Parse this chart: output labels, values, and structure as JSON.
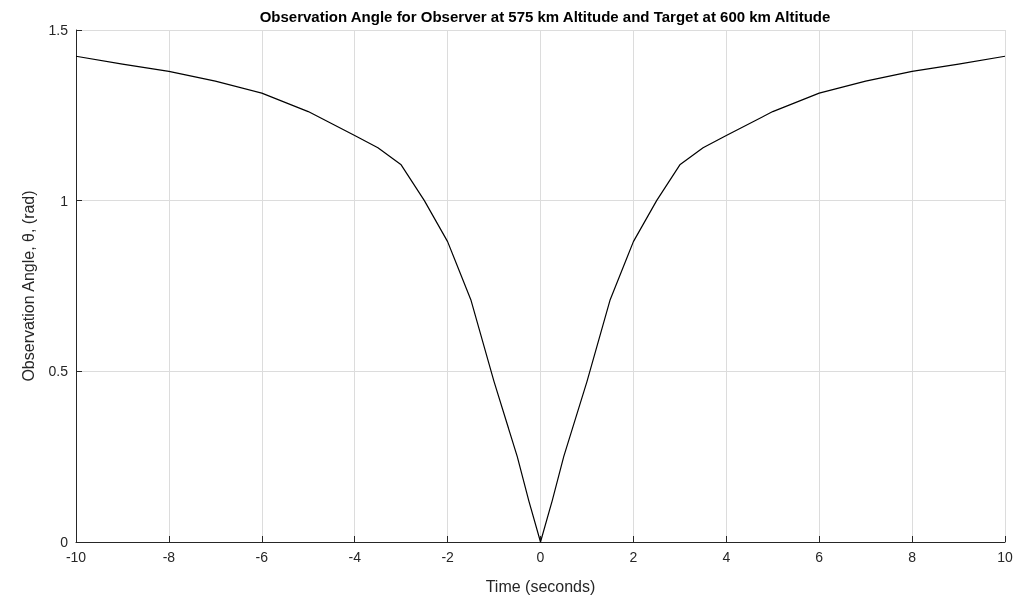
{
  "chart_data": {
    "type": "line",
    "title": "Observation Angle for Observer at 575 km Altitude and Target at 600 km Altitude",
    "xlabel": "Time (seconds)",
    "ylabel": "Observation Angle, θ, (rad)",
    "x": [
      -10,
      -9,
      -8,
      -7,
      -6,
      -5,
      -4,
      -3.5,
      -3,
      -2.5,
      -2,
      -1.5,
      -1,
      -0.5,
      -0.25,
      0,
      0.25,
      0.5,
      1,
      1.5,
      2,
      2.5,
      3,
      3.5,
      4,
      5,
      6,
      7,
      8,
      9,
      10
    ],
    "series": [
      {
        "color": "#000000",
        "values": [
          1.423,
          1.4,
          1.379,
          1.35,
          1.315,
          1.261,
          1.191,
          1.155,
          1.105,
          1.0,
          0.88,
          0.71,
          0.47,
          0.25,
          0.12,
          0,
          0.12,
          0.25,
          0.47,
          0.71,
          0.88,
          1.0,
          1.105,
          1.155,
          1.191,
          1.261,
          1.315,
          1.35,
          1.379,
          1.4,
          1.423
        ]
      }
    ],
    "xlim": [
      -10,
      10
    ],
    "xticks": [
      -10,
      -8,
      -6,
      -4,
      -2,
      0,
      2,
      4,
      6,
      8,
      10
    ],
    "ylim": [
      0,
      1.5
    ],
    "yticks": [
      0,
      0.5,
      1,
      1.5
    ],
    "grid": true,
    "marker": "none",
    "line_style": "solid"
  }
}
